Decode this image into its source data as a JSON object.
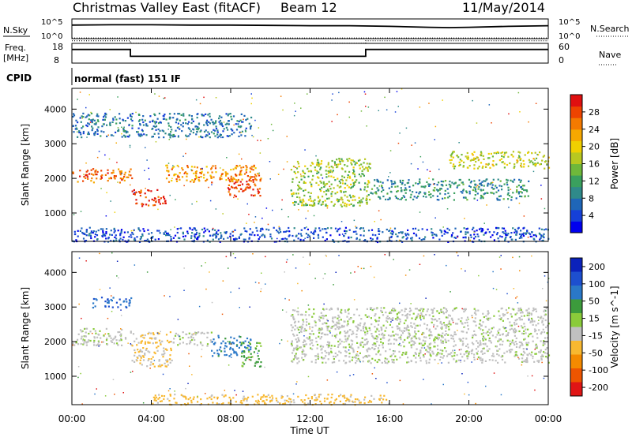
{
  "header": {
    "station": "Christmas Valley East (fitACF)",
    "beam": "Beam 12",
    "date": "11/May/2014"
  },
  "panels": {
    "noise": {
      "left_label": "N.Sky",
      "left_ticks": [
        "10^5",
        "10^0"
      ],
      "right_ticks": [
        "10^5",
        "10^0"
      ],
      "right_label": "N.Search"
    },
    "freq": {
      "left_label_1": "Freq.",
      "left_label_2": "[MHz]",
      "left_ticks": [
        "18",
        "8"
      ],
      "right_ticks": [
        "60",
        "0"
      ],
      "right_label": "Nave"
    },
    "cpid": {
      "label": "CPID",
      "value": "normal (fast) 151 IF"
    }
  },
  "x_axis": {
    "label": "Time UT",
    "ticks": [
      "00:00",
      "04:00",
      "08:00",
      "12:00",
      "16:00",
      "20:00",
      "00:00"
    ]
  },
  "chart_data": [
    {
      "type": "line",
      "name": "noise",
      "x_range": [
        0,
        24
      ],
      "segments": [
        {
          "label": "N.Sky",
          "style": "solid",
          "x": [
            0,
            2,
            4,
            6,
            8,
            10,
            12,
            14,
            16,
            18,
            19,
            20,
            22,
            24
          ],
          "y_log10": [
            4.3,
            4.4,
            4.4,
            4.3,
            4.3,
            4.2,
            4.1,
            4.1,
            3.9,
            3.6,
            3.5,
            3.6,
            3.9,
            4.1
          ]
        },
        {
          "label": "N.Search",
          "style": "dotted",
          "x": [
            0,
            12,
            24
          ],
          "y_log10": [
            0.2,
            0.2,
            0.2
          ]
        }
      ]
    },
    {
      "type": "line",
      "name": "frequency_nave",
      "x_range": [
        0,
        24
      ],
      "segments": [
        {
          "label": "Freq. [MHz]",
          "style": "solid",
          "x": [
            0,
            2.95,
            2.95,
            14.8,
            14.8,
            24
          ],
          "y": [
            16,
            16,
            10.5,
            10.5,
            16,
            16
          ]
        },
        {
          "label": "Nave",
          "style": "dotted",
          "x": [
            0,
            2.95,
            2.95,
            14.8,
            14.8,
            24
          ],
          "y": [
            23,
            23,
            21,
            21,
            23,
            23
          ]
        }
      ]
    },
    {
      "type": "heatmap",
      "title": "",
      "xlabel": "Time UT",
      "ylabel": "Slant Range [km]",
      "x_range": [
        0,
        24
      ],
      "ylim": [
        180,
        4600
      ],
      "yticks": [
        1000,
        2000,
        3000,
        4000
      ],
      "colorbar": {
        "label": "Power [dB]",
        "ticks": [
          4,
          8,
          12,
          16,
          20,
          24,
          28
        ],
        "range": [
          0,
          32
        ]
      },
      "features": [
        {
          "x": [
            0,
            3
          ],
          "y": [
            1900,
            2300
          ],
          "value": 26
        },
        {
          "x": [
            3,
            4.7
          ],
          "y": [
            1200,
            1700
          ],
          "value": 29
        },
        {
          "x": [
            4.7,
            9.5
          ],
          "y": [
            1900,
            2400
          ],
          "value": 24
        },
        {
          "x": [
            7.8,
            9.5
          ],
          "y": [
            1500,
            2100
          ],
          "value": 28
        },
        {
          "x": [
            0,
            9
          ],
          "y": [
            3200,
            3900
          ],
          "value": 8
        },
        {
          "x": [
            11,
            15
          ],
          "y": [
            1200,
            2600
          ],
          "value": 16
        },
        {
          "x": [
            15,
            23
          ],
          "y": [
            1400,
            2000
          ],
          "value": 10
        },
        {
          "x": [
            19,
            24
          ],
          "y": [
            2300,
            2800
          ],
          "value": 18
        },
        {
          "x": [
            0,
            24
          ],
          "y": [
            180,
            600
          ],
          "value": 5
        }
      ]
    },
    {
      "type": "heatmap",
      "title": "",
      "xlabel": "Time UT",
      "ylabel": "Slant Range [km]",
      "x_range": [
        0,
        24
      ],
      "ylim": [
        180,
        4600
      ],
      "yticks": [
        1000,
        2000,
        3000,
        4000
      ],
      "colorbar": {
        "label": "Velocity [m s^-1]",
        "ticks": [
          200,
          100,
          50,
          15,
          -15,
          -50,
          -100,
          -200
        ],
        "range": [
          -250,
          250
        ]
      },
      "features": [
        {
          "x": [
            0,
            3
          ],
          "y": [
            1900,
            2400
          ],
          "value": 0
        },
        {
          "x": [
            3,
            5
          ],
          "y": [
            1300,
            2300
          ],
          "value": -60
        },
        {
          "x": [
            5,
            7
          ],
          "y": [
            1900,
            2300
          ],
          "value": 0
        },
        {
          "x": [
            7,
            9
          ],
          "y": [
            1600,
            2200
          ],
          "value": 120
        },
        {
          "x": [
            8.5,
            9.5
          ],
          "y": [
            1300,
            2000
          ],
          "value": 60
        },
        {
          "x": [
            1,
            3
          ],
          "y": [
            3000,
            3300
          ],
          "value": 150
        },
        {
          "x": [
            11,
            24
          ],
          "y": [
            1400,
            3000
          ],
          "value": 0
        },
        {
          "x": [
            4,
            16
          ],
          "y": [
            200,
            500
          ],
          "value": -70
        }
      ]
    }
  ]
}
